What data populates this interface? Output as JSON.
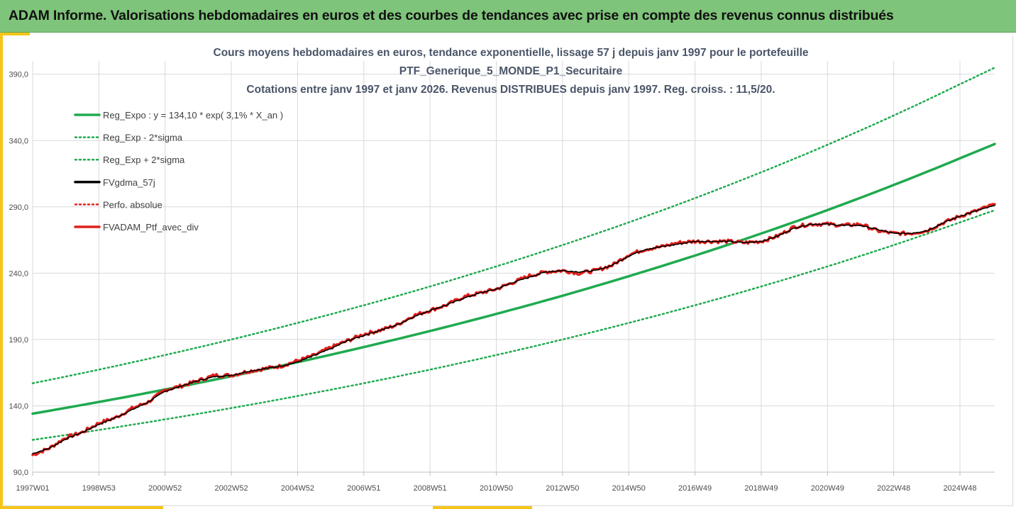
{
  "header": {
    "title": "ADAM Informe. Valorisations hebdomadaires en euros et des courbes de tendances avec prise en compte des revenus connus distribués"
  },
  "colors": {
    "header_bg": "#7ec47a",
    "accent": "#f5c518",
    "trend": "#1faa4f",
    "actual": "#e0201b",
    "smoothed": "#000000"
  },
  "chart_data": {
    "type": "line",
    "title_lines": [
      "Cours moyens hebdomadaires  en euros, tendance exponentielle, lissage 57 j depuis janv 1997 pour le portefeuille",
      "PTF_Generique_5_MONDE_P1_Securitaire",
      "Cotations entre janv 1997 et janv 2026. Revenus DISTRIBUES depuis janv 1997. Reg. croiss. : 11,5/20."
    ],
    "xlabel": "",
    "ylabel": "",
    "x_range": [
      1997.0,
      2026.05
    ],
    "ylim": [
      90,
      400
    ],
    "y_ticks": [
      "90,0",
      "140,0",
      "190,0",
      "240,0",
      "290,0",
      "340,0",
      "390,0"
    ],
    "x_ticks": [
      {
        "label": "1997W01",
        "year": 1997.0
      },
      {
        "label": "1998W53",
        "year": 1999.0
      },
      {
        "label": "2000W52",
        "year": 2001.0
      },
      {
        "label": "2002W52",
        "year": 2003.0
      },
      {
        "label": "2004W52",
        "year": 2005.0
      },
      {
        "label": "2006W51",
        "year": 2007.0
      },
      {
        "label": "2008W51",
        "year": 2009.0
      },
      {
        "label": "2010W50",
        "year": 2011.0
      },
      {
        "label": "2012W50",
        "year": 2013.0
      },
      {
        "label": "2014W50",
        "year": 2015.0
      },
      {
        "label": "2016W49",
        "year": 2017.0
      },
      {
        "label": "2018W49",
        "year": 2019.0
      },
      {
        "label": "2020W49",
        "year": 2021.0
      },
      {
        "label": "2022W48",
        "year": 2023.0
      },
      {
        "label": "2024W48",
        "year": 2025.0
      }
    ],
    "grid": true,
    "legend_position": "top-left",
    "legend": [
      {
        "label": "Reg_Expo : y = 134,10 * exp( 3,1% *  X_an )",
        "style": "solid-green"
      },
      {
        "label": "Reg_Exp - 2*sigma",
        "style": "dotted-green"
      },
      {
        "label": "Reg_Exp + 2*sigma",
        "style": "dotted-green"
      },
      {
        "label": "FVgdma_57j",
        "style": "solid-black"
      },
      {
        "label": "Perfo. absolue",
        "style": "dotted-red"
      },
      {
        "label": "FVADAM_Ptf_avec_div",
        "style": "solid-red"
      }
    ],
    "series": [
      {
        "name": "Reg_Expo",
        "x": [
          1997,
          1999,
          2001,
          2003,
          2005,
          2007,
          2009,
          2011,
          2013,
          2015,
          2017,
          2019,
          2021,
          2023,
          2025,
          2026.05
        ],
        "values": [
          134.1,
          142.9,
          152.3,
          162.3,
          172.9,
          184.3,
          196.4,
          209.3,
          223.0,
          237.7,
          253.3,
          269.9,
          287.6,
          306.5,
          326.6,
          337.4
        ]
      },
      {
        "name": "Reg_Exp - 2*sigma",
        "x": [
          1997,
          1999,
          2001,
          2003,
          2005,
          2007,
          2009,
          2011,
          2013,
          2015,
          2017,
          2019,
          2021,
          2023,
          2025,
          2026.05
        ],
        "values": [
          114.3,
          121.8,
          129.8,
          138.3,
          147.4,
          157.0,
          167.3,
          178.3,
          190.0,
          202.5,
          215.8,
          230.0,
          245.1,
          261.2,
          278.3,
          287.5
        ]
      },
      {
        "name": "Reg_Exp + 2*sigma",
        "x": [
          1997,
          1999,
          2001,
          2003,
          2005,
          2007,
          2009,
          2011,
          2013,
          2015,
          2017,
          2019,
          2021,
          2023,
          2025,
          2026.05
        ],
        "values": [
          157.0,
          167.3,
          178.3,
          190.0,
          202.5,
          215.8,
          230.0,
          245.1,
          261.2,
          278.3,
          296.6,
          316.1,
          336.8,
          358.9,
          382.5,
          395.0
        ]
      },
      {
        "name": "FVADAM_Ptf_avec_div",
        "x": [
          1997.0,
          1997.5,
          1998.0,
          1998.5,
          1999.0,
          1999.5,
          2000.0,
          2000.5,
          2001.0,
          2001.5,
          2002.0,
          2002.5,
          2003.0,
          2003.5,
          2004.0,
          2004.5,
          2005.0,
          2005.5,
          2006.0,
          2006.5,
          2007.0,
          2007.5,
          2008.0,
          2008.5,
          2009.0,
          2009.5,
          2010.0,
          2010.5,
          2011.0,
          2011.5,
          2012.0,
          2012.5,
          2013.0,
          2013.5,
          2014.0,
          2014.5,
          2015.0,
          2015.5,
          2016.0,
          2016.5,
          2017.0,
          2017.5,
          2018.0,
          2018.5,
          2019.0,
          2019.5,
          2020.0,
          2020.5,
          2021.0,
          2021.5,
          2022.0,
          2022.5,
          2023.0,
          2023.5,
          2024.0,
          2024.5,
          2025.0,
          2025.5,
          2026.05
        ],
        "values": [
          103,
          108,
          116,
          120,
          127,
          131,
          138,
          143,
          152,
          155,
          159,
          163,
          163,
          166,
          168,
          170,
          174,
          178,
          184,
          189,
          194,
          197,
          201,
          208,
          212,
          216,
          222,
          225,
          228,
          233,
          238,
          241,
          242,
          240,
          242,
          246,
          254,
          258,
          260,
          263,
          264,
          264,
          264,
          263,
          264,
          268,
          275,
          277,
          277,
          276,
          277,
          272,
          270,
          270,
          272,
          278,
          283,
          287,
          292
        ]
      },
      {
        "name": "FVgdma_57j",
        "x": [
          1997.0,
          1997.5,
          1998.0,
          1998.5,
          1999.0,
          1999.5,
          2000.0,
          2000.5,
          2001.0,
          2001.5,
          2002.0,
          2002.5,
          2003.0,
          2003.5,
          2004.0,
          2004.5,
          2005.0,
          2005.5,
          2006.0,
          2006.5,
          2007.0,
          2007.5,
          2008.0,
          2008.5,
          2009.0,
          2009.5,
          2010.0,
          2010.5,
          2011.0,
          2011.5,
          2012.0,
          2012.5,
          2013.0,
          2013.5,
          2014.0,
          2014.5,
          2015.0,
          2015.5,
          2016.0,
          2016.5,
          2017.0,
          2017.5,
          2018.0,
          2018.5,
          2019.0,
          2019.5,
          2020.0,
          2020.5,
          2021.0,
          2021.5,
          2022.0,
          2022.5,
          2023.0,
          2023.5,
          2024.0,
          2024.5,
          2025.0,
          2025.5,
          2026.05
        ],
        "values": [
          104,
          108,
          115,
          120,
          126,
          131,
          137,
          143,
          151,
          155,
          159,
          162,
          163,
          166,
          168,
          170,
          173,
          178,
          183,
          189,
          193,
          197,
          201,
          207,
          212,
          216,
          221,
          225,
          228,
          233,
          237,
          241,
          242,
          241,
          242,
          246,
          253,
          258,
          260,
          262,
          264,
          264,
          264,
          263,
          264,
          268,
          274,
          277,
          277,
          276,
          276,
          273,
          270,
          270,
          272,
          278,
          283,
          287,
          291
        ]
      }
    ]
  }
}
